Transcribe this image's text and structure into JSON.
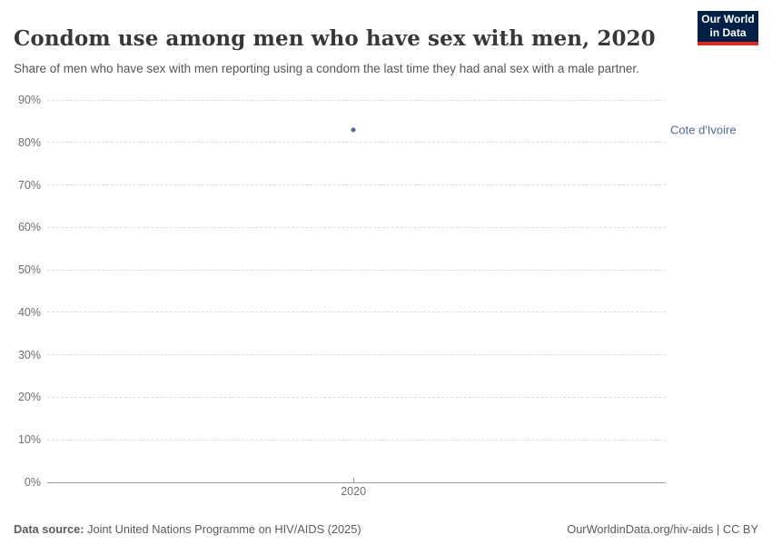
{
  "header": {
    "title": "Condom use among men who have sex with men, 2020",
    "subtitle": "Share of men who have sex with men reporting using a condom the last time they had anal sex with a male partner.",
    "logo": {
      "line1": "Our World",
      "line2": "in Data"
    }
  },
  "chart_data": {
    "type": "scatter",
    "title": "Condom use among men who have sex with men, 2020",
    "xlabel": "",
    "ylabel": "",
    "unit": "%",
    "ylim": [
      0,
      90
    ],
    "grid": "horizontal dashed",
    "legend_position": "right of point (entity label)",
    "xticklabels": [
      "2020"
    ],
    "yticklabels": [
      "90%",
      "80%",
      "70%",
      "60%",
      "50%",
      "40%",
      "30%",
      "20%",
      "10%",
      "0%"
    ],
    "series": [
      {
        "name": "Cote d'Ivoire",
        "x": [
          2020
        ],
        "y": [
          83
        ],
        "color": "#4c6a9c"
      }
    ]
  },
  "footer": {
    "datasource_label": "Data source:",
    "datasource_text": " Joint United Nations Programme on HIV/AIDS (2025)",
    "license_text": "OurWorldinData.org/hiv-aids | CC BY"
  },
  "colors": {
    "accent_blue": "#4c6a9c",
    "logo_navy": "#002147",
    "logo_red": "#dc2a1d",
    "gridline": "#dcdcdc",
    "axis": "#999999",
    "tick_text": "#6e6e6e"
  }
}
